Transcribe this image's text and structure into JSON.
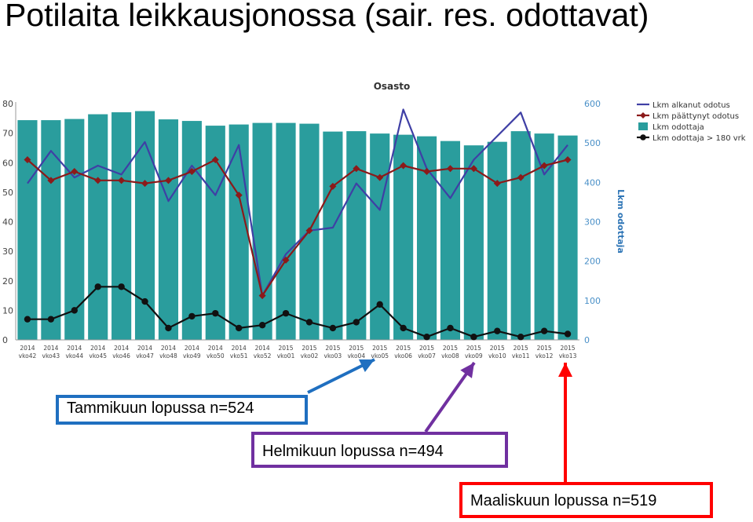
{
  "slide": {
    "title": "Potilaita leikkausjonossa (sair. res. odottavat)"
  },
  "callouts": [
    {
      "id": "jan",
      "text": "Tammikuun lopussa n=524",
      "color": "#1f6fc0",
      "points_to": "2015 vko05"
    },
    {
      "id": "feb",
      "text": "Helmikuun lopussa n=494",
      "color": "#7030a0",
      "points_to": "2015 vko09"
    },
    {
      "id": "mar",
      "text": "Maaliskuun lopussa n=519",
      "color": "#ff0000",
      "points_to": "2015 vko13"
    }
  ],
  "chart_data": {
    "type": "bar",
    "title": "Osasto",
    "xlabel": "",
    "ylabel": "",
    "ylabel_right": "Lkm odottaja",
    "ylim": [
      0,
      80
    ],
    "ylim_right": [
      0,
      600
    ],
    "yticks_left": [
      0,
      10,
      20,
      30,
      40,
      50,
      60,
      70,
      80
    ],
    "yticks_right": [
      0,
      100,
      200,
      300,
      400,
      500,
      600
    ],
    "grid": false,
    "legend_position": "top-right",
    "categories": [
      [
        "2014",
        "vko42"
      ],
      [
        "2014",
        "vko43"
      ],
      [
        "2014",
        "vko44"
      ],
      [
        "2014",
        "vko45"
      ],
      [
        "2014",
        "vko46"
      ],
      [
        "2014",
        "vko47"
      ],
      [
        "2014",
        "vko48"
      ],
      [
        "2014",
        "vko49"
      ],
      [
        "2014",
        "vko50"
      ],
      [
        "2014",
        "vko51"
      ],
      [
        "2014",
        "vko52"
      ],
      [
        "2015",
        "vko01"
      ],
      [
        "2015",
        "vko02"
      ],
      [
        "2015",
        "vko03"
      ],
      [
        "2015",
        "vko04"
      ],
      [
        "2015",
        "vko05"
      ],
      [
        "2015",
        "vko06"
      ],
      [
        "2015",
        "vko07"
      ],
      [
        "2015",
        "vko08"
      ],
      [
        "2015",
        "vko09"
      ],
      [
        "2015",
        "vko10"
      ],
      [
        "2015",
        "vko11"
      ],
      [
        "2015",
        "vko12"
      ],
      [
        "2015",
        "vko13"
      ]
    ],
    "series": [
      {
        "name": "Lkm alkanut odotus",
        "kind": "line",
        "axis": "left",
        "color": "#3f3fa5",
        "values": [
          53,
          64,
          55,
          59,
          56,
          67,
          47,
          59,
          49,
          66,
          15,
          29,
          37,
          38,
          53,
          44,
          78,
          58,
          48,
          61,
          69,
          77,
          56,
          66
        ]
      },
      {
        "name": "Lkm päättynyt odotus",
        "kind": "line",
        "axis": "left",
        "color": "#8b1a1a",
        "marker": "diamond",
        "values": [
          61,
          54,
          57,
          54,
          54,
          53,
          54,
          57,
          61,
          49,
          15,
          27,
          37,
          52,
          58,
          55,
          59,
          57,
          58,
          58,
          53,
          55,
          59,
          61
        ]
      },
      {
        "name": "Lkm odottaja",
        "kind": "bar",
        "axis": "right",
        "color": "#2a9d9d",
        "values": [
          558,
          558,
          561,
          573,
          578,
          581,
          560,
          556,
          544,
          547,
          551,
          551,
          549,
          529,
          530,
          524,
          521,
          517,
          505,
          494,
          503,
          530,
          524,
          519
        ]
      },
      {
        "name": "Lkm odottaja > 180 vrk",
        "kind": "line",
        "axis": "left",
        "color": "#111111",
        "marker": "circle",
        "values": [
          7,
          7,
          10,
          18,
          18,
          13,
          4,
          8,
          9,
          4,
          5,
          9,
          6,
          4,
          6,
          12,
          4,
          1,
          4,
          1,
          3,
          1,
          3,
          2
        ]
      }
    ]
  }
}
